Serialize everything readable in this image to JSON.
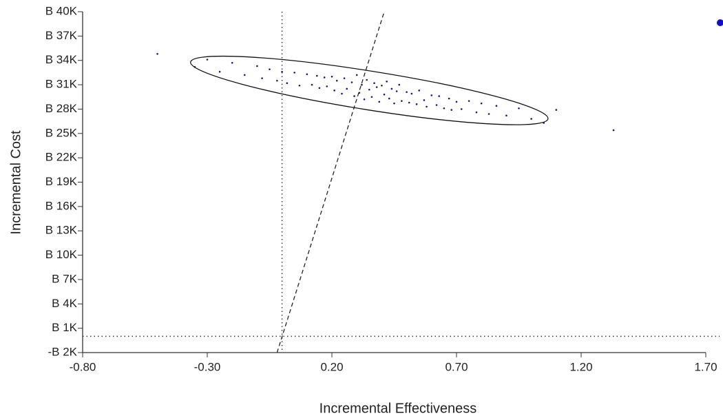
{
  "chart_data": {
    "type": "scatter",
    "x_label": "Incremental Effectiveness",
    "y_label": "Incremental Cost",
    "xlim": [
      -0.8,
      1.7
    ],
    "ylim": [
      -2000,
      40000
    ],
    "xticks": [
      {
        "value": -0.8,
        "label": "-0.80"
      },
      {
        "value": -0.3,
        "label": "-0.30"
      },
      {
        "value": 0.2,
        "label": "0.20"
      },
      {
        "value": 0.7,
        "label": "0.70"
      },
      {
        "value": 1.2,
        "label": "1.20"
      },
      {
        "value": 1.7,
        "label": "1.70"
      }
    ],
    "yticks": [
      {
        "value": -2000,
        "label": "-B 2K"
      },
      {
        "value": 1000,
        "label": "B 1K"
      },
      {
        "value": 4000,
        "label": "B 4K"
      },
      {
        "value": 7000,
        "label": "B 7K"
      },
      {
        "value": 10000,
        "label": "B 10K"
      },
      {
        "value": 13000,
        "label": "B 13K"
      },
      {
        "value": 16000,
        "label": "B 16K"
      },
      {
        "value": 19000,
        "label": "B 19K"
      },
      {
        "value": 22000,
        "label": "B 22K"
      },
      {
        "value": 25000,
        "label": "B 25K"
      },
      {
        "value": 28000,
        "label": "B 28K"
      },
      {
        "value": 31000,
        "label": "B 31K"
      },
      {
        "value": 34000,
        "label": "B 34K"
      },
      {
        "value": 37000,
        "label": "B 37K"
      },
      {
        "value": 40000,
        "label": "B 40K"
      }
    ],
    "color": "#1a1a70",
    "x": [
      -0.5,
      -0.35,
      -0.3,
      -0.25,
      -0.2,
      -0.15,
      -0.1,
      -0.08,
      -0.05,
      -0.02,
      0.0,
      0.02,
      0.05,
      0.07,
      0.1,
      0.12,
      0.14,
      0.15,
      0.17,
      0.18,
      0.2,
      0.21,
      0.22,
      0.24,
      0.25,
      0.26,
      0.28,
      0.29,
      0.3,
      0.31,
      0.32,
      0.33,
      0.34,
      0.35,
      0.36,
      0.37,
      0.38,
      0.39,
      0.4,
      0.41,
      0.42,
      0.43,
      0.44,
      0.45,
      0.46,
      0.47,
      0.48,
      0.5,
      0.51,
      0.52,
      0.54,
      0.55,
      0.57,
      0.58,
      0.6,
      0.62,
      0.63,
      0.65,
      0.67,
      0.68,
      0.7,
      0.72,
      0.75,
      0.78,
      0.8,
      0.83,
      0.86,
      0.9,
      0.95,
      1.0,
      1.05,
      1.1,
      1.33
    ],
    "values": [
      34800,
      33200,
      34100,
      32600,
      33700,
      32200,
      33300,
      31800,
      32900,
      31500,
      32600,
      31200,
      32500,
      30900,
      32300,
      31000,
      32100,
      30600,
      31900,
      30800,
      32000,
      30300,
      31500,
      29900,
      31800,
      30500,
      31300,
      29600,
      32200,
      30000,
      31000,
      29200,
      31600,
      30400,
      29500,
      31200,
      30700,
      28900,
      30900,
      29800,
      31400,
      29300,
      30500,
      28700,
      30200,
      31000,
      29000,
      30100,
      28800,
      29900,
      28600,
      30300,
      29100,
      28300,
      29700,
      28500,
      29600,
      28100,
      29300,
      27900,
      28900,
      28000,
      29000,
      27600,
      28700,
      27400,
      28400,
      27200,
      28100,
      26800,
      26300,
      27900,
      25400
    ],
    "ellipse": {
      "center": [
        0.35,
        30300
      ],
      "major_end": [
        1.067,
        26800
      ],
      "minor_end": [
        0.358,
        32680
      ]
    },
    "vline": 0,
    "hline": 0,
    "wtp_line": {
      "x": [
        -0.02,
        0.41
      ],
      "y": [
        -2000,
        40000
      ]
    }
  }
}
